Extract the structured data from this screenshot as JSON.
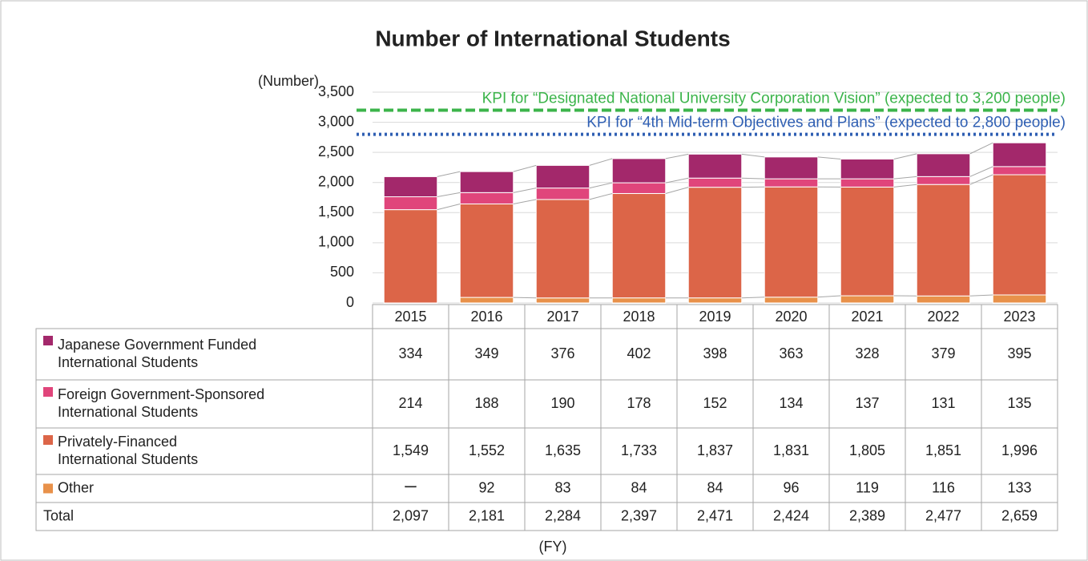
{
  "chart_data": {
    "type": "bar",
    "stacked": true,
    "title": "Number of International Students",
    "y_label": "(Number)",
    "x_label": "(FY)",
    "categories": [
      "2015",
      "2016",
      "2017",
      "2018",
      "2019",
      "2020",
      "2021",
      "2022",
      "2023"
    ],
    "ylim": [
      0,
      3500
    ],
    "yticks": [
      0,
      500,
      {
        "value": 1000,
        "label": "1,000"
      },
      {
        "value": 1500,
        "label": "1,500"
      },
      {
        "value": 2000,
        "label": "2,000"
      },
      {
        "value": 2500,
        "label": "2,500"
      },
      {
        "value": 3000,
        "label": "3,000"
      },
      {
        "value": 3500,
        "label": "3,500"
      }
    ],
    "grid": true,
    "series": [
      {
        "name": "Japanese Government Funded International Students",
        "color": "#a3286b",
        "values": [
          334,
          349,
          376,
          402,
          398,
          363,
          328,
          379,
          395
        ],
        "value_labels": [
          "334",
          "349",
          "376",
          "402",
          "398",
          "363",
          "328",
          "379",
          "395"
        ]
      },
      {
        "name": "Foreign Government-Sponsored International Students",
        "color": "#e0457b",
        "values": [
          214,
          188,
          190,
          178,
          152,
          134,
          137,
          131,
          135
        ],
        "value_labels": [
          "214",
          "188",
          "190",
          "178",
          "152",
          "134",
          "137",
          "131",
          "135"
        ]
      },
      {
        "name": "Privately-Financed International Students",
        "color": "#dc6548",
        "values": [
          1549,
          1552,
          1635,
          1733,
          1837,
          1831,
          1805,
          1851,
          1996
        ],
        "value_labels": [
          "1,549",
          "1,552",
          "1,635",
          "1,733",
          "1,837",
          "1,831",
          "1,805",
          "1,851",
          "1,996"
        ]
      },
      {
        "name": "Other",
        "color": "#e8914a",
        "values": [
          null,
          92,
          83,
          84,
          84,
          96,
          119,
          116,
          133
        ],
        "value_labels": [
          "ー",
          "92",
          "83",
          "84",
          "84",
          "96",
          "119",
          "116",
          "133"
        ]
      }
    ],
    "total": {
      "name": "Total",
      "values": [
        2097,
        2181,
        2284,
        2397,
        2471,
        2424,
        2389,
        2477,
        2659
      ],
      "value_labels": [
        "2,097",
        "2,181",
        "2,284",
        "2,397",
        "2,471",
        "2,424",
        "2,389",
        "2,477",
        "2,659"
      ]
    },
    "reference_lines": [
      {
        "label": "KPI for “Designated National University Corporation Vision” (expected to 3,200 people)",
        "value": 3200,
        "color": "#3cb44b",
        "style": "dashed"
      },
      {
        "label": "KPI for “4th Mid-term Objectives and Plans” (expected to 2,800 people)",
        "value": 2800,
        "color": "#2f5fb3",
        "style": "dotted"
      }
    ]
  }
}
